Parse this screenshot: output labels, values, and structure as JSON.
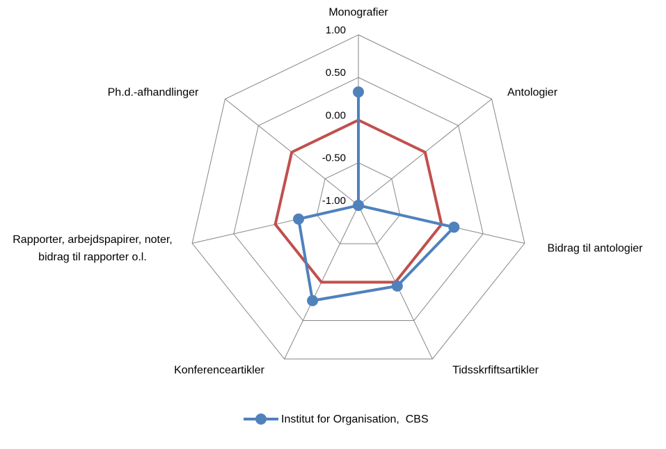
{
  "chart_data": {
    "type": "radar",
    "categories": [
      "Monografier",
      "Antologier",
      "Bidrag til antologier",
      "Tidsskrfiftsartikler",
      "Konferenceartikler",
      "Rapporter, arbejdspapirer, noter, bidrag til rapporter o.l.",
      "Ph.d.-afhandlinger"
    ],
    "series": [
      {
        "name": "Institut for Organisation,  CBS",
        "color": "#4f81bd",
        "marker": true,
        "values": [
          0.33,
          -1,
          0.15,
          0.05,
          0.24,
          -0.28,
          -1
        ]
      },
      {
        "color": "#c0504d",
        "marker": false,
        "values": [
          0,
          0,
          0,
          0,
          0,
          0,
          0
        ]
      }
    ],
    "ylim": [
      -1,
      1
    ],
    "yticks": [
      {
        "value": -1,
        "label": "-1.00"
      },
      {
        "value": -0.5,
        "label": "-0.50"
      },
      {
        "value": 0,
        "label": "0.00"
      },
      {
        "value": 0.5,
        "label": "0.50"
      },
      {
        "value": 1,
        "label": "1.00"
      }
    ],
    "grid": true,
    "legend": "bottom"
  }
}
